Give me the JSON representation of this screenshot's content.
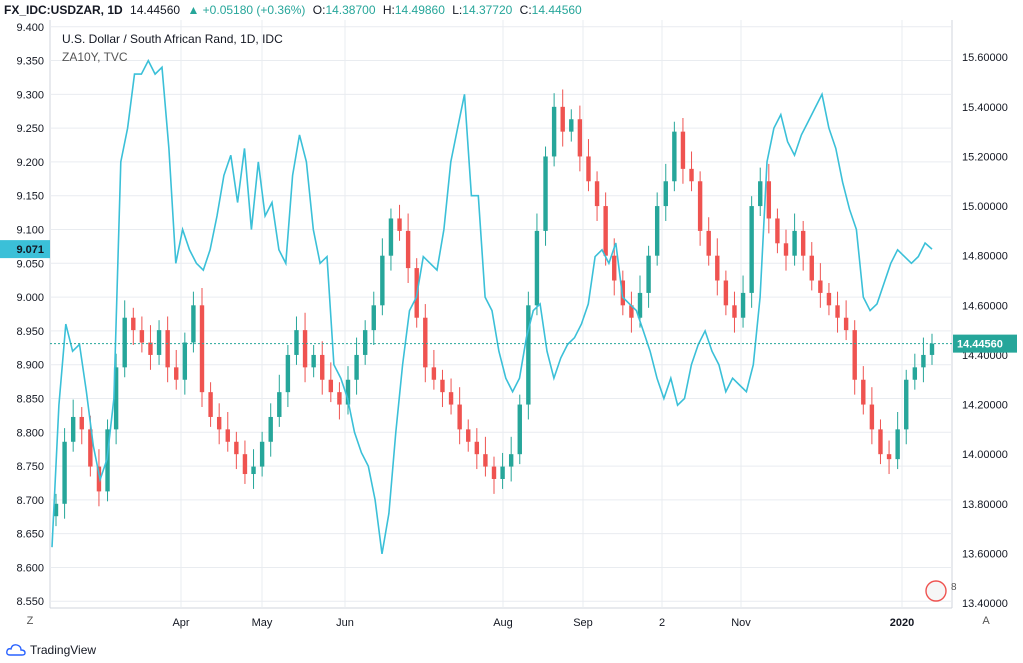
{
  "header": {
    "symbol": "FX_IDC:USDZAR, 1D",
    "last": "14.44560",
    "change": "+0.05180 (+0.36%)",
    "open_label": "O:",
    "open": "14.38700",
    "high_label": "H:",
    "high": "14.49860",
    "low_label": "L:",
    "low": "14.37720",
    "close_label": "C:",
    "close": "14.44560"
  },
  "legend": {
    "main": "U.S. Dollar / South African Rand, 1D, IDC",
    "overlay": "ZA10Y, TVC"
  },
  "footer": {
    "brand": "TradingView",
    "left_btn": "Z",
    "right_btn": "A"
  },
  "badge_text": "8",
  "colors": {
    "up": "#26a69a",
    "down": "#ef5350",
    "overlay": "#3bc0d8",
    "grid": "#e9ecf0",
    "price_label_bg": "#26a69a",
    "left_label_bg": "#3bc0d8"
  },
  "chart_data": {
    "type": "line",
    "x_ticks": [
      "Apr",
      "May",
      "Jun",
      "Aug",
      "Sep",
      "2",
      "Nov",
      "2020"
    ],
    "left_axis": {
      "ticks": [
        "9.400",
        "9.350",
        "9.300",
        "9.250",
        "9.200",
        "9.150",
        "9.100",
        "9.050",
        "9.000",
        "8.950",
        "8.900",
        "8.850",
        "8.800",
        "8.750",
        "8.700",
        "8.650",
        "8.600",
        "8.550"
      ],
      "range": [
        8.54,
        9.41
      ],
      "current_label": "9.071"
    },
    "right_axis": {
      "ticks": [
        "15.60000",
        "15.40000",
        "15.20000",
        "15.00000",
        "14.80000",
        "14.60000",
        "14.40000",
        "14.20000",
        "14.00000",
        "13.80000",
        "13.60000",
        "13.40000"
      ],
      "range": [
        13.38,
        15.75
      ],
      "current_label": "14.44560"
    },
    "series": [
      {
        "name": "ZA10Y, TVC",
        "axis": "left",
        "values": [
          8.63,
          8.84,
          8.96,
          8.92,
          8.93,
          8.86,
          8.78,
          8.73,
          8.76,
          8.85,
          9.2,
          9.25,
          9.33,
          9.33,
          9.35,
          9.33,
          9.34,
          9.22,
          9.05,
          9.1,
          9.07,
          9.05,
          9.04,
          9.07,
          9.12,
          9.18,
          9.21,
          9.14,
          9.22,
          9.1,
          9.2,
          9.12,
          9.14,
          9.07,
          9.05,
          9.18,
          9.24,
          9.2,
          9.1,
          9.05,
          9.06,
          8.9,
          8.88,
          8.85,
          8.8,
          8.77,
          8.75,
          8.7,
          8.62,
          8.68,
          8.8,
          8.9,
          8.98,
          9.0,
          9.06,
          9.05,
          9.04,
          9.1,
          9.2,
          9.25,
          9.3,
          9.15,
          9.15,
          9.0,
          8.98,
          8.92,
          8.88,
          8.86,
          8.88,
          8.94,
          8.98,
          8.99,
          8.92,
          8.88,
          8.91,
          8.93,
          8.94,
          8.96,
          8.99,
          9.06,
          9.07,
          9.05,
          9.08,
          9.0,
          8.99,
          8.98,
          8.95,
          8.92,
          8.88,
          8.85,
          8.88,
          8.84,
          8.85,
          8.9,
          8.93,
          8.95,
          8.92,
          8.9,
          8.86,
          8.88,
          8.87,
          8.86,
          8.9,
          9.0,
          9.2,
          9.25,
          9.27,
          9.23,
          9.21,
          9.24,
          9.26,
          9.28,
          9.3,
          9.25,
          9.22,
          9.17,
          9.13,
          9.1,
          9.0,
          8.98,
          8.99,
          9.02,
          9.05,
          9.07,
          9.06,
          9.05,
          9.06,
          9.08,
          9.071
        ]
      },
      {
        "name": "U.S. Dollar / South African Rand, 1D, IDC",
        "axis": "right",
        "type": "candlestick",
        "values": [
          13.8,
          14.05,
          14.15,
          14.1,
          13.95,
          13.85,
          14.1,
          14.35,
          14.55,
          14.5,
          14.45,
          14.4,
          14.5,
          14.35,
          14.3,
          14.45,
          14.6,
          14.25,
          14.15,
          14.1,
          14.05,
          14.0,
          13.92,
          13.95,
          14.05,
          14.15,
          14.25,
          14.4,
          14.5,
          14.35,
          14.4,
          14.3,
          14.25,
          14.2,
          14.3,
          14.4,
          14.5,
          14.6,
          14.8,
          14.95,
          14.9,
          14.75,
          14.55,
          14.35,
          14.3,
          14.25,
          14.2,
          14.1,
          14.05,
          14.0,
          13.95,
          13.9,
          13.95,
          14.0,
          14.2,
          14.6,
          14.9,
          15.2,
          15.4,
          15.3,
          15.35,
          15.2,
          15.1,
          15.0,
          14.8,
          14.7,
          14.6,
          14.55,
          14.65,
          14.8,
          15.0,
          15.1,
          15.3,
          15.15,
          15.1,
          14.9,
          14.8,
          14.7,
          14.6,
          14.55,
          14.65,
          15.0,
          15.1,
          14.95,
          14.85,
          14.8,
          14.9,
          14.8,
          14.7,
          14.65,
          14.6,
          14.55,
          14.5,
          14.3,
          14.2,
          14.1,
          14.0,
          13.98,
          14.1,
          14.3,
          14.35,
          14.4,
          14.4456
        ]
      }
    ],
    "last_price": 14.4456
  }
}
